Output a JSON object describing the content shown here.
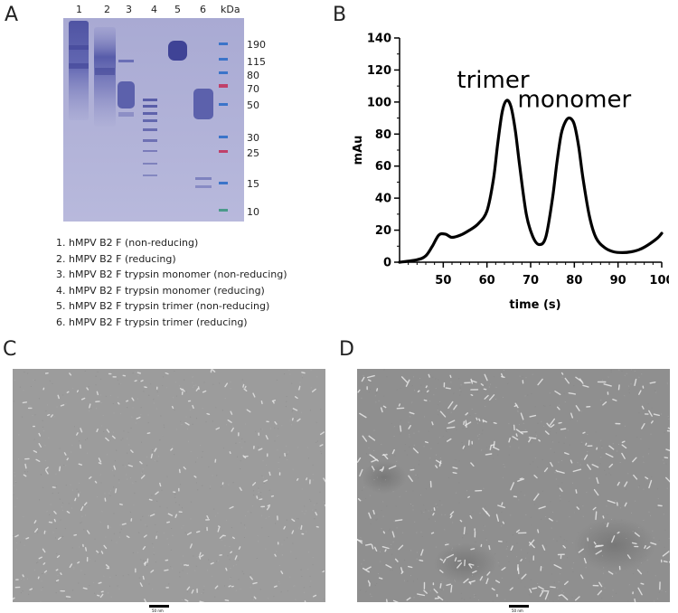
{
  "panels": {
    "a": "A",
    "b": "B",
    "c": "C",
    "d": "D"
  },
  "gel": {
    "lanes": [
      "1",
      "2",
      "3",
      "4",
      "5",
      "6"
    ],
    "kda_header": "kDa",
    "markers": [
      "190",
      "115",
      "80",
      "70",
      "50",
      "30",
      "25",
      "15",
      "10"
    ],
    "colors": {
      "background": "#b2b3d8",
      "band": "#4a4fa0",
      "marker_blue": "#3b74c9",
      "marker_red": "#c0406a",
      "marker_green": "#4a9a8a"
    }
  },
  "legend": [
    "1. hMPV B2 F (non-reducing)",
    "2. hMPV B2 F (reducing)",
    "3. hMPV B2 F trypsin monomer (non-reducing)",
    "4. hMPV B2 F trypsin monomer (reducing)",
    "5. hMPV B2 F trypsin trimer (non-reducing)",
    "6. hMPV B2 F trypsin trimer (reducing)"
  ],
  "chart_data": {
    "type": "line",
    "title": "",
    "xlabel": "time (s)",
    "ylabel": "mAu",
    "xlim": [
      40,
      100
    ],
    "ylim": [
      0,
      140
    ],
    "xticks": [
      "50",
      "60",
      "70",
      "80",
      "90",
      "100"
    ],
    "yticks": [
      "0",
      "20",
      "40",
      "60",
      "80",
      "100",
      "120",
      "140"
    ],
    "grid": false,
    "annotations": [
      "trimer",
      "monomer"
    ],
    "series": [
      {
        "x": [
          40,
          44,
          46,
          47.5,
          49,
          50.5,
          52,
          54,
          56,
          58,
          60,
          61.5,
          62.5,
          63.5,
          64.5,
          65.5,
          66.5,
          67.5,
          69,
          70.5,
          72,
          73.5,
          75,
          76,
          77,
          78,
          79,
          80,
          81,
          82,
          83.5,
          85,
          87,
          89,
          91,
          93,
          95,
          97,
          99,
          100
        ],
        "y": [
          0,
          1.5,
          4,
          10,
          17,
          17.5,
          15.5,
          17,
          20,
          24,
          32,
          52,
          75,
          94,
          101,
          97,
          82,
          60,
          30,
          16,
          11,
          16,
          40,
          62,
          80,
          88,
          90,
          86,
          72,
          52,
          28,
          15,
          9,
          6.5,
          6,
          6.5,
          8,
          11,
          15,
          18
        ]
      }
    ],
    "colors": {
      "line": "#000000"
    }
  },
  "micrographs": {
    "c": {
      "scale_label": "50 nm"
    },
    "d": {
      "scale_label": "50 nm"
    }
  }
}
